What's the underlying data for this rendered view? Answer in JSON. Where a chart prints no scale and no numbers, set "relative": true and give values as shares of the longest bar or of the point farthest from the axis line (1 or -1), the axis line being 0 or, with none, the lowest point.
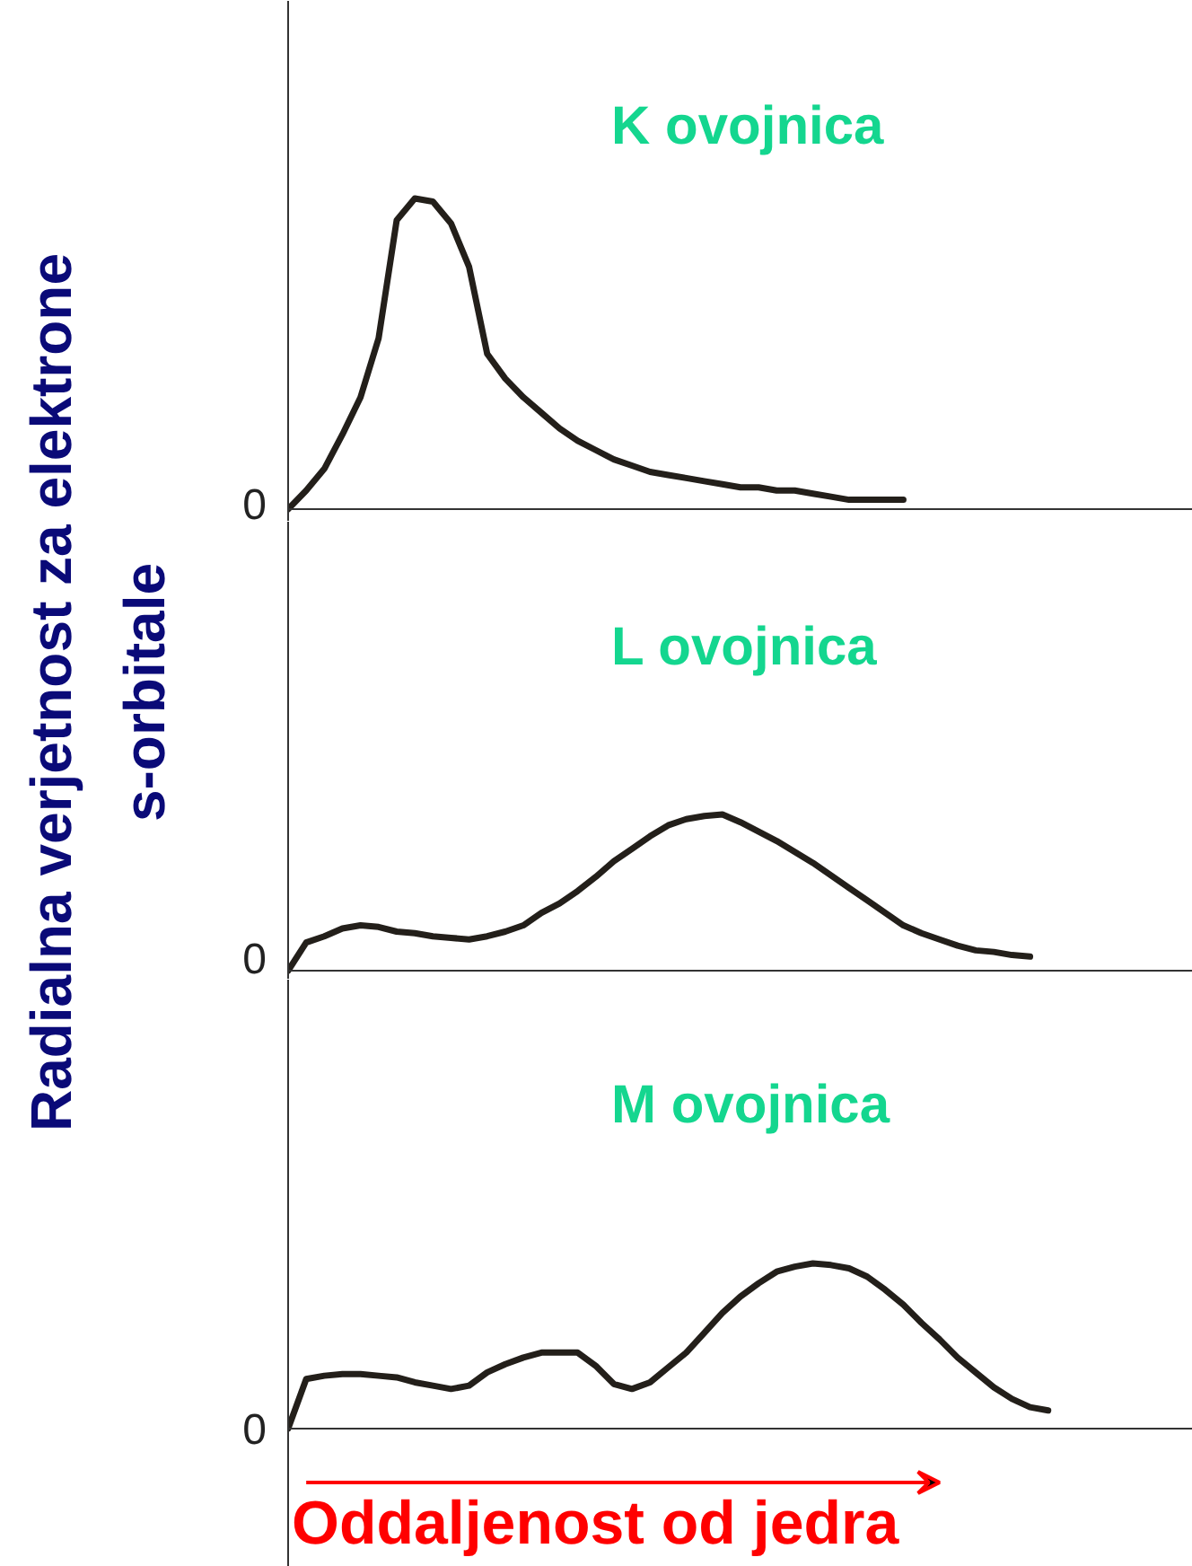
{
  "chart_data": [
    {
      "type": "line",
      "relative": true,
      "categories": [
        null,
        null,
        null,
        null,
        null,
        null,
        null,
        null,
        null,
        null,
        null,
        null,
        null,
        null,
        null,
        null,
        null,
        null,
        null,
        null,
        null,
        null,
        null,
        null,
        null,
        null,
        null,
        null,
        null,
        null,
        null,
        null,
        null,
        null,
        null,
        null,
        null,
        null,
        null,
        null,
        null,
        null,
        null,
        null,
        null,
        null,
        null
      ],
      "series": [
        {
          "color": "#231f1a",
          "values": [
            0,
            0.06,
            0.13,
            0.24,
            0.36,
            0.55,
            0.93,
            1.0,
            0.99,
            0.92,
            0.78,
            0.5,
            0.42,
            0.36,
            0.31,
            0.26,
            0.22,
            0.19,
            0.16,
            0.14,
            0.12,
            0.11,
            0.1,
            0.09,
            0.08,
            0.07,
            0.07,
            0.06,
            0.06,
            0.05,
            0.04,
            0.03,
            0.03,
            0.03,
            0.03,
            null,
            null,
            null,
            null,
            null,
            null,
            null,
            null,
            null,
            null,
            null,
            null
          ]
        }
      ],
      "annotations": [
        "K ovojnica",
        "0"
      ]
    },
    {
      "type": "line",
      "relative": true,
      "ylabel": "Radialna verjetnost za elektrone s-orbitale",
      "categories": [
        null,
        null,
        null,
        null,
        null,
        null,
        null,
        null,
        null,
        null,
        null,
        null,
        null,
        null,
        null,
        null,
        null,
        null,
        null,
        null,
        null,
        null,
        null,
        null,
        null,
        null,
        null,
        null,
        null,
        null,
        null,
        null,
        null,
        null,
        null,
        null,
        null,
        null,
        null,
        null,
        null,
        null,
        null,
        null,
        null,
        null,
        null
      ],
      "series": [
        {
          "color": "#231f1a",
          "values": [
            0,
            0.18,
            0.22,
            0.27,
            0.29,
            0.28,
            0.25,
            0.24,
            0.22,
            0.21,
            0.2,
            0.22,
            0.25,
            0.29,
            0.37,
            0.43,
            0.51,
            0.6,
            0.7,
            0.78,
            0.86,
            0.93,
            0.97,
            0.99,
            1.0,
            0.95,
            0.89,
            0.83,
            0.76,
            0.69,
            0.61,
            0.53,
            0.45,
            0.37,
            0.29,
            0.24,
            0.2,
            0.16,
            0.13,
            0.12,
            0.1,
            0.09,
            null,
            null,
            null,
            null,
            null
          ]
        }
      ],
      "annotations": [
        "L ovojnica",
        "0"
      ]
    },
    {
      "type": "line",
      "relative": true,
      "xlabel": "Oddaljenost od jedra",
      "categories": [
        null,
        null,
        null,
        null,
        null,
        null,
        null,
        null,
        null,
        null,
        null,
        null,
        null,
        null,
        null,
        null,
        null,
        null,
        null,
        null,
        null,
        null,
        null,
        null,
        null,
        null,
        null,
        null,
        null,
        null,
        null,
        null,
        null,
        null,
        null,
        null,
        null,
        null,
        null,
        null,
        null,
        null,
        null,
        null,
        null,
        null,
        null
      ],
      "series": [
        {
          "color": "#231f1a",
          "values": [
            0,
            0.3,
            0.32,
            0.33,
            0.33,
            0.32,
            0.31,
            0.28,
            0.26,
            0.24,
            0.26,
            0.34,
            0.39,
            0.43,
            0.46,
            0.46,
            0.46,
            0.38,
            0.27,
            0.24,
            0.28,
            0.37,
            0.46,
            0.58,
            0.7,
            0.8,
            0.88,
            0.95,
            0.98,
            1.0,
            0.99,
            0.97,
            0.92,
            0.84,
            0.75,
            0.64,
            0.54,
            0.43,
            0.34,
            0.25,
            0.18,
            0.13,
            0.11,
            null,
            null,
            null,
            null
          ]
        }
      ],
      "annotations": [
        "M ovojnica",
        "0"
      ]
    }
  ]
}
